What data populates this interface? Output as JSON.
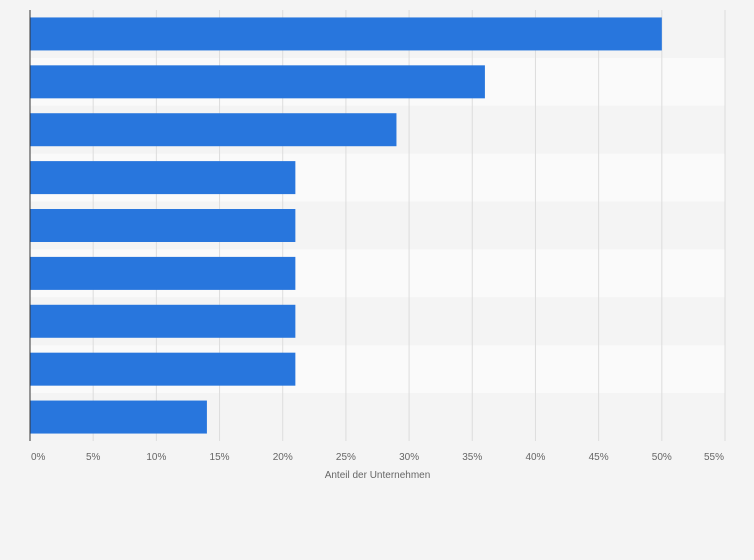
{
  "chart_data": {
    "type": "bar",
    "orientation": "horizontal",
    "categories": [
      "",
      "",
      "",
      "",
      "",
      "",
      "",
      "",
      ""
    ],
    "values": [
      50,
      36,
      29,
      21,
      21,
      21,
      21,
      21,
      14
    ],
    "xlabel": "Anteil der Unternehmen",
    "ylabel": "",
    "xlim": [
      0,
      55
    ],
    "xticks": [
      "0%",
      "5%",
      "10%",
      "15%",
      "20%",
      "25%",
      "30%",
      "35%",
      "40%",
      "45%",
      "50%",
      "55%"
    ],
    "grid": true,
    "legend": "none",
    "colors": {
      "bar": "#2876dd",
      "row_band": "#f4f4f4",
      "row_band_alt": "#fafafa",
      "gridline": "#dddddd",
      "axis": "#333333"
    }
  }
}
